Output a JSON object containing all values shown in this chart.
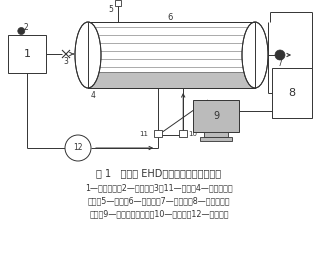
{
  "title": "图 1   换热器 EHD强化空气对流传热系统",
  "caption_line1": "1—蔭汽锅炉；2—安全阀；3、11—闸阀；4—换热器内管",
  "caption_line2": "管束；5—电极；6—换热器；7—疏水阀；8—高压静电发",
  "caption_line3": "生器；9—计算机采集系统；10—流量计；12—漩涡气泵",
  "bg_color": "#ffffff",
  "line_color": "#333333"
}
